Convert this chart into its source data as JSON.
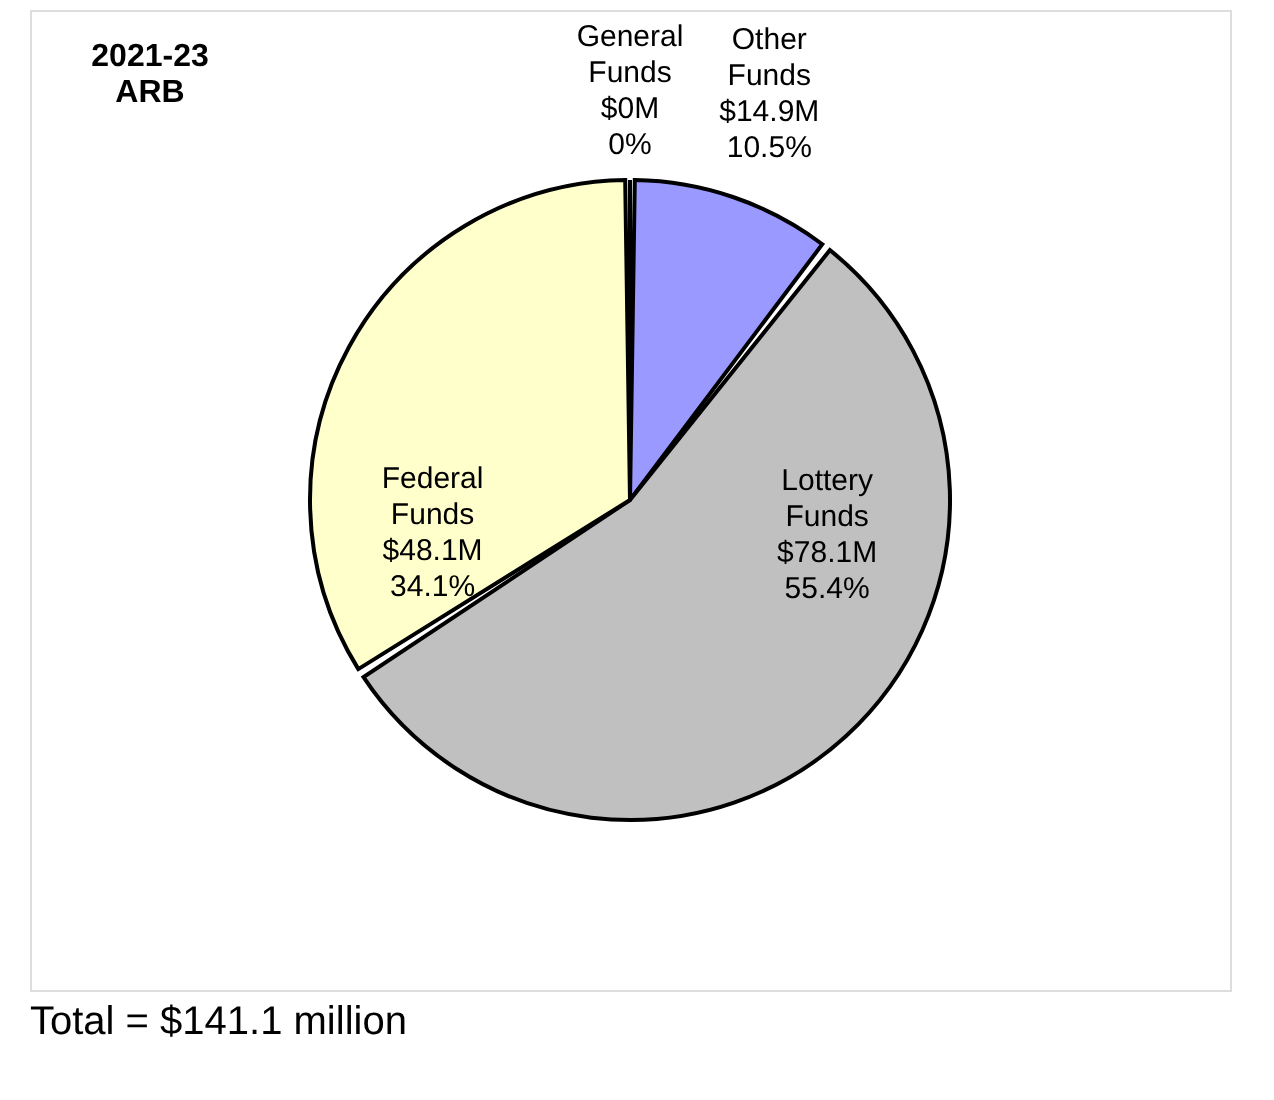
{
  "chart_data": {
    "type": "pie",
    "title": "2021-23 ARB",
    "categories": [
      "General Funds",
      "Other Funds",
      "Lottery Funds",
      "Federal Funds"
    ],
    "values": [
      0,
      10.5,
      55.4,
      34.1
    ],
    "colors": [
      "#ffffff",
      "#9999ff",
      "#c0c0c0",
      "#ffffcc"
    ],
    "value_labels": [
      "$0M 0%",
      "$14.9M 10.5%",
      "$78.1M 55.4%",
      "$48.1M 34.1%"
    ],
    "annotations": [
      "Total  = $141.1 million"
    ],
    "legend": false
  }
}
